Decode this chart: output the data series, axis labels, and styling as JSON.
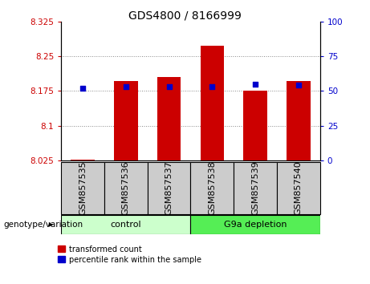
{
  "title": "GDS4800 / 8166999",
  "samples": [
    "GSM857535",
    "GSM857536",
    "GSM857537",
    "GSM857538",
    "GSM857539",
    "GSM857540"
  ],
  "transformed_count": [
    8.027,
    8.196,
    8.205,
    8.272,
    8.175,
    8.196
  ],
  "percentile_rank": [
    52,
    53,
    53,
    53,
    55,
    54
  ],
  "ylim_left": [
    8.025,
    8.325
  ],
  "ylim_right": [
    0,
    100
  ],
  "yticks_left": [
    8.025,
    8.1,
    8.175,
    8.25,
    8.325
  ],
  "yticks_right": [
    0,
    25,
    50,
    75,
    100
  ],
  "ytick_labels_left": [
    "8.025",
    "8.1",
    "8.175",
    "8.25",
    "8.325"
  ],
  "ytick_labels_right": [
    "0",
    "25",
    "50",
    "75",
    "100"
  ],
  "bar_color": "#cc0000",
  "dot_color": "#0000cc",
  "control_label": "control",
  "depletion_label": "G9a depletion",
  "group_label": "genotype/variation",
  "control_color": "#ccffcc",
  "depletion_color": "#55ee55",
  "legend_red_label": "transformed count",
  "legend_blue_label": "percentile rank within the sample",
  "bar_bottom": 8.025,
  "bar_width": 0.55,
  "grid_color": "#888888",
  "tick_label_color_left": "#cc0000",
  "tick_label_color_right": "#0000cc",
  "sample_box_color": "#cccccc",
  "title_fontsize": 10,
  "label_fontsize": 8,
  "tick_fontsize": 7.5
}
